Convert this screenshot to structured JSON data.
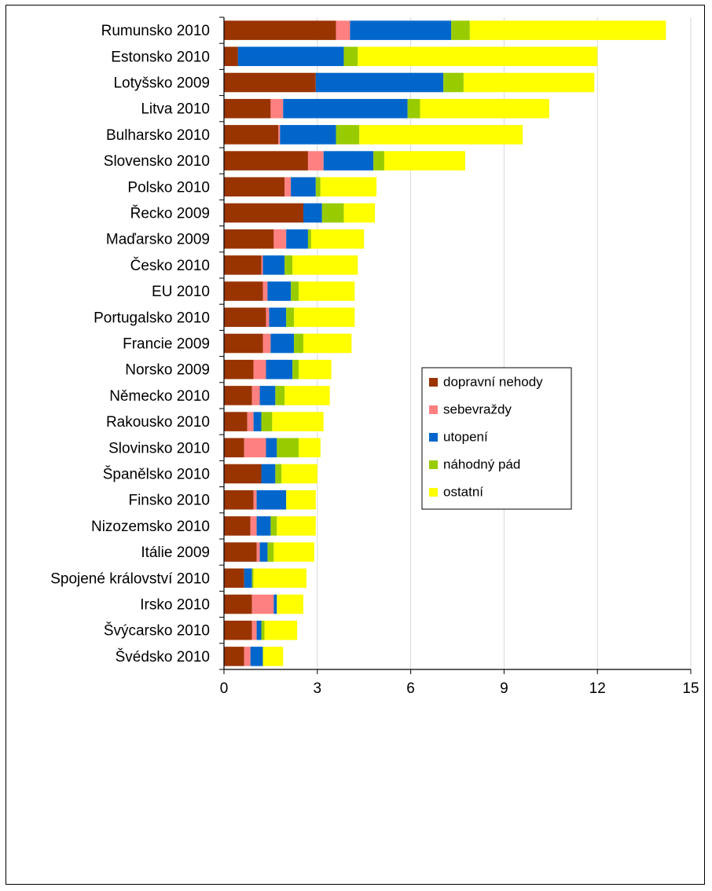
{
  "chart_data": {
    "type": "bar",
    "orientation": "horizontal",
    "stacked": true,
    "categories": [
      "Rumunsko 2010",
      "Estonsko 2010",
      "Lotyšsko 2009",
      "Litva 2010",
      "Bulharsko 2010",
      "Slovensko 2010",
      "Polsko 2010",
      "Řecko 2009",
      "Maďarsko 2009",
      "Česko 2010",
      "EU 2010",
      "Portugalsko 2010",
      "Francie 2009",
      "Norsko 2009",
      "Německo 2010",
      "Rakousko 2010",
      "Slovinsko 2010",
      "Španělsko 2010",
      "Finsko 2010",
      "Nizozemsko 2010",
      "Itálie 2009",
      "Spojené království 2010",
      "Irsko 2010",
      "Švýcarsko 2010",
      "Švédsko 2010"
    ],
    "series": [
      {
        "name": "dopravní nehody",
        "color": "#993300",
        "values": [
          3.6,
          0.45,
          2.95,
          1.5,
          1.75,
          2.7,
          1.95,
          2.55,
          1.6,
          1.2,
          1.25,
          1.35,
          1.25,
          0.95,
          0.9,
          0.75,
          0.65,
          1.2,
          0.95,
          0.85,
          1.05,
          0.65,
          0.9,
          0.9,
          0.65
        ]
      },
      {
        "name": "sebevraždy",
        "color": "#FF8080",
        "values": [
          0.45,
          0.0,
          0.0,
          0.4,
          0.05,
          0.5,
          0.2,
          0.0,
          0.4,
          0.05,
          0.15,
          0.1,
          0.25,
          0.4,
          0.25,
          0.2,
          0.7,
          0.0,
          0.1,
          0.2,
          0.1,
          0.0,
          0.7,
          0.15,
          0.2
        ]
      },
      {
        "name": "utopení",
        "color": "#0066CC",
        "values": [
          3.25,
          3.4,
          4.1,
          4.0,
          1.8,
          1.6,
          0.8,
          0.6,
          0.7,
          0.7,
          0.75,
          0.55,
          0.75,
          0.85,
          0.5,
          0.25,
          0.35,
          0.45,
          0.95,
          0.45,
          0.25,
          0.25,
          0.1,
          0.15,
          0.4
        ]
      },
      {
        "name": "náhodný pád",
        "color": "#99CC00",
        "values": [
          0.6,
          0.45,
          0.65,
          0.4,
          0.75,
          0.35,
          0.15,
          0.7,
          0.1,
          0.25,
          0.25,
          0.25,
          0.3,
          0.2,
          0.3,
          0.35,
          0.7,
          0.2,
          0.0,
          0.2,
          0.2,
          0.05,
          0.0,
          0.1,
          0.0
        ]
      },
      {
        "name": "ostatní",
        "color": "#FFFF00",
        "values": [
          6.3,
          7.7,
          4.2,
          4.15,
          5.25,
          2.6,
          1.8,
          1.0,
          1.7,
          2.1,
          1.8,
          1.95,
          1.55,
          1.05,
          1.45,
          1.65,
          0.7,
          1.15,
          0.95,
          1.25,
          1.3,
          1.7,
          0.85,
          1.05,
          0.65
        ]
      }
    ],
    "xlim": [
      0,
      15
    ],
    "xticks": [
      "0",
      "3",
      "6",
      "9",
      "12",
      "15"
    ],
    "grid": "vertical",
    "legend": "center-right"
  }
}
